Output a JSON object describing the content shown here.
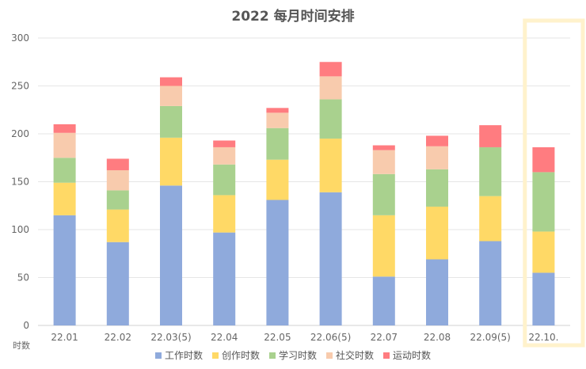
{
  "chart_data": {
    "type": "bar",
    "stacked": true,
    "title": "2022 每月时间安排",
    "ylabel": "时数",
    "xlabel": "",
    "ylim": [
      0,
      300
    ],
    "yticks": [
      0,
      50,
      100,
      150,
      200,
      250,
      300
    ],
    "grid": true,
    "legend_position": "bottom",
    "categories": [
      "22.01",
      "22.02",
      "22.03(5)",
      "22.04",
      "22.05",
      "22.06(5)",
      "22.07",
      "22.08",
      "22.09(5)",
      "22.10."
    ],
    "series": [
      {
        "name": "工作时数",
        "color": "#8faadc",
        "values": [
          115,
          87,
          146,
          97,
          131,
          139,
          51,
          69,
          88,
          55
        ]
      },
      {
        "name": "创作时数",
        "color": "#ffd966",
        "values": [
          34,
          34,
          50,
          39,
          42,
          56,
          64,
          55,
          47,
          43
        ]
      },
      {
        "name": "学习时数",
        "color": "#a9d18e",
        "values": [
          26,
          20,
          33,
          32,
          33,
          41,
          43,
          39,
          51,
          62
        ]
      },
      {
        "name": "社交时数",
        "color": "#f8cbad",
        "values": [
          26,
          21,
          21,
          18,
          16,
          24,
          25,
          24,
          0,
          0
        ]
      },
      {
        "name": "运动时数",
        "color": "#ff7c80",
        "values": [
          9,
          12,
          9,
          7,
          5,
          15,
          5,
          11,
          23,
          26
        ]
      }
    ],
    "highlight_category": "22.10.",
    "highlight_color": "#fff2cc"
  }
}
